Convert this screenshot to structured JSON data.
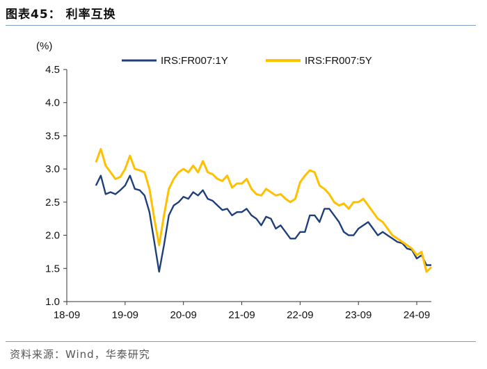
{
  "figure": {
    "title": "图表45： 利率互换",
    "source": "资料来源：Wind，华泰研究"
  },
  "colors": {
    "series_1y": "#1f3f7a",
    "series_5y": "#ffc000",
    "axis": "#333333",
    "rule": "#7f9fc0"
  },
  "chart_data": {
    "type": "line",
    "title": "",
    "xlabel": "",
    "ylabel": "(%)",
    "ylim": [
      1.0,
      4.5
    ],
    "yticks": [
      "1.0",
      "1.5",
      "2.0",
      "2.5",
      "3.0",
      "3.5",
      "4.0",
      "4.5"
    ],
    "xlim": [
      "2018-09",
      "2024-12"
    ],
    "xticks": [
      "18-09",
      "19-09",
      "20-09",
      "21-09",
      "22-09",
      "23-09",
      "24-09"
    ],
    "grid": false,
    "legend_position": "top",
    "series": [
      {
        "name": "IRS:FR007:1Y",
        "x": [
          "2019-03",
          "2019-04",
          "2019-05",
          "2019-06",
          "2019-07",
          "2019-08",
          "2019-09",
          "2019-10",
          "2019-11",
          "2019-12",
          "2020-01",
          "2020-02",
          "2020-03",
          "2020-04",
          "2020-05",
          "2020-06",
          "2020-07",
          "2020-08",
          "2020-09",
          "2020-10",
          "2020-11",
          "2020-12",
          "2021-01",
          "2021-02",
          "2021-03",
          "2021-04",
          "2021-05",
          "2021-06",
          "2021-07",
          "2021-08",
          "2021-09",
          "2021-10",
          "2021-11",
          "2021-12",
          "2022-01",
          "2022-02",
          "2022-03",
          "2022-04",
          "2022-05",
          "2022-06",
          "2022-07",
          "2022-08",
          "2022-09",
          "2022-10",
          "2022-11",
          "2022-12",
          "2023-01",
          "2023-02",
          "2023-03",
          "2023-04",
          "2023-05",
          "2023-06",
          "2023-07",
          "2023-08",
          "2023-09",
          "2023-10",
          "2023-11",
          "2023-12",
          "2024-01",
          "2024-02",
          "2024-03",
          "2024-04",
          "2024-05",
          "2024-06",
          "2024-07",
          "2024-08",
          "2024-09",
          "2024-10",
          "2024-11",
          "2024-12"
        ],
        "values": [
          2.75,
          2.9,
          2.62,
          2.65,
          2.62,
          2.68,
          2.75,
          2.9,
          2.7,
          2.68,
          2.6,
          2.35,
          1.9,
          1.45,
          1.85,
          2.3,
          2.45,
          2.5,
          2.58,
          2.55,
          2.65,
          2.6,
          2.68,
          2.55,
          2.52,
          2.45,
          2.38,
          2.4,
          2.3,
          2.35,
          2.35,
          2.4,
          2.3,
          2.25,
          2.15,
          2.28,
          2.25,
          2.1,
          2.15,
          2.05,
          1.95,
          1.95,
          2.05,
          2.05,
          2.3,
          2.3,
          2.2,
          2.4,
          2.4,
          2.3,
          2.2,
          2.05,
          2.0,
          2.0,
          2.1,
          2.15,
          2.2,
          2.1,
          2.0,
          2.05,
          2.0,
          1.95,
          1.9,
          1.88,
          1.8,
          1.78,
          1.65,
          1.7,
          1.55,
          1.55
        ]
      },
      {
        "name": "IRS:FR007:5Y",
        "x": [
          "2019-03",
          "2019-04",
          "2019-05",
          "2019-06",
          "2019-07",
          "2019-08",
          "2019-09",
          "2019-10",
          "2019-11",
          "2019-12",
          "2020-01",
          "2020-02",
          "2020-03",
          "2020-04",
          "2020-05",
          "2020-06",
          "2020-07",
          "2020-08",
          "2020-09",
          "2020-10",
          "2020-11",
          "2020-12",
          "2021-01",
          "2021-02",
          "2021-03",
          "2021-04",
          "2021-05",
          "2021-06",
          "2021-07",
          "2021-08",
          "2021-09",
          "2021-10",
          "2021-11",
          "2021-12",
          "2022-01",
          "2022-02",
          "2022-03",
          "2022-04",
          "2022-05",
          "2022-06",
          "2022-07",
          "2022-08",
          "2022-09",
          "2022-10",
          "2022-11",
          "2022-12",
          "2023-01",
          "2023-02",
          "2023-03",
          "2023-04",
          "2023-05",
          "2023-06",
          "2023-07",
          "2023-08",
          "2023-09",
          "2023-10",
          "2023-11",
          "2023-12",
          "2024-01",
          "2024-02",
          "2024-03",
          "2024-04",
          "2024-05",
          "2024-06",
          "2024-07",
          "2024-08",
          "2024-09",
          "2024-10",
          "2024-11",
          "2024-12"
        ],
        "values": [
          3.1,
          3.3,
          3.05,
          2.95,
          2.85,
          2.88,
          3.0,
          3.2,
          3.0,
          2.98,
          2.95,
          2.7,
          2.25,
          1.85,
          2.3,
          2.7,
          2.85,
          2.95,
          3.0,
          2.95,
          3.05,
          2.95,
          3.12,
          2.95,
          2.92,
          2.85,
          2.82,
          2.9,
          2.72,
          2.78,
          2.78,
          2.85,
          2.7,
          2.62,
          2.6,
          2.7,
          2.65,
          2.6,
          2.62,
          2.55,
          2.5,
          2.55,
          2.8,
          2.9,
          2.98,
          2.95,
          2.75,
          2.7,
          2.62,
          2.5,
          2.45,
          2.48,
          2.4,
          2.5,
          2.5,
          2.55,
          2.45,
          2.35,
          2.25,
          2.2,
          2.1,
          2.0,
          1.95,
          1.9,
          1.85,
          1.8,
          1.7,
          1.75,
          1.45,
          1.52
        ]
      }
    ]
  }
}
